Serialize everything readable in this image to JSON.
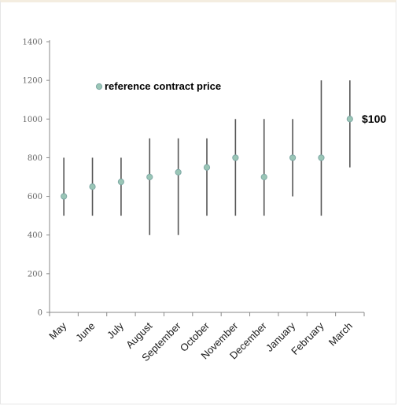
{
  "chart_data": {
    "type": "scatter",
    "categories": [
      "May",
      "June",
      "July",
      "August",
      "September",
      "October",
      "November",
      "December",
      "January",
      "February",
      "March"
    ],
    "series": [
      {
        "name": "reference contract price",
        "values": [
          600,
          650,
          675,
          700,
          725,
          750,
          800,
          700,
          800,
          800,
          1000
        ],
        "low": [
          500,
          500,
          500,
          400,
          400,
          500,
          500,
          500,
          600,
          500,
          750
        ],
        "high": [
          800,
          800,
          800,
          900,
          900,
          900,
          1000,
          1000,
          1000,
          1200,
          1200
        ]
      }
    ],
    "y_ticks": [
      "0",
      "200",
      "400",
      "600",
      "800",
      "1000",
      "1200",
      "1400"
    ],
    "ylim": [
      0,
      1400
    ],
    "legend": {
      "label": "reference contract price",
      "placement": "top-left"
    },
    "annotation": {
      "text": "$100",
      "category": "March"
    },
    "colors": {
      "marker": "#7fa9a6",
      "marker_fill": "#9ac6b6",
      "error_bar": "#555555",
      "axis": "#888888"
    }
  }
}
